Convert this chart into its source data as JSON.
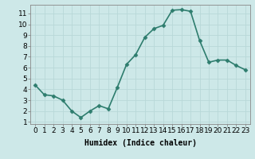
{
  "x": [
    0,
    1,
    2,
    3,
    4,
    5,
    6,
    7,
    8,
    9,
    10,
    11,
    12,
    13,
    14,
    15,
    16,
    17,
    18,
    19,
    20,
    21,
    22,
    23
  ],
  "y": [
    4.4,
    3.5,
    3.4,
    3.0,
    2.0,
    1.4,
    2.0,
    2.5,
    2.2,
    4.2,
    6.3,
    7.2,
    8.8,
    9.6,
    9.9,
    11.3,
    11.35,
    11.2,
    8.5,
    6.5,
    6.7,
    6.7,
    6.2,
    5.8
  ],
  "line_color": "#2e7d6e",
  "marker": "D",
  "marker_size": 2.5,
  "bg_color": "#cde8e8",
  "grid_color": "#b8d8d8",
  "xlabel": "Humidex (Indice chaleur)",
  "xlim": [
    -0.5,
    23.5
  ],
  "ylim": [
    0.8,
    11.8
  ],
  "xticks": [
    0,
    1,
    2,
    3,
    4,
    5,
    6,
    7,
    8,
    9,
    10,
    11,
    12,
    13,
    14,
    15,
    16,
    17,
    18,
    19,
    20,
    21,
    22,
    23
  ],
  "yticks": [
    1,
    2,
    3,
    4,
    5,
    6,
    7,
    8,
    9,
    10,
    11
  ],
  "xlabel_fontsize": 7,
  "tick_fontsize": 6.5,
  "line_width": 1.2
}
